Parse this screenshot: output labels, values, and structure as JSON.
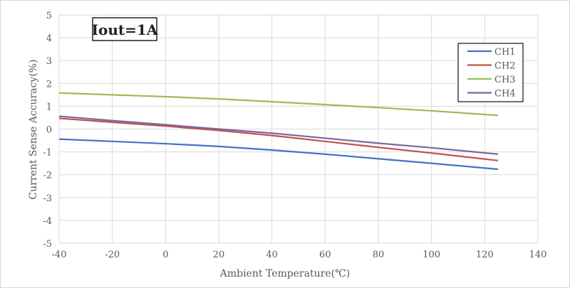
{
  "chart_data": {
    "type": "line",
    "title": "",
    "annotation": "Iout=1A",
    "xlabel": "Ambient Temperature(℃)",
    "ylabel": "Current Sense Accuracy(%)",
    "xlim": [
      -40,
      140
    ],
    "ylim": [
      -5,
      5
    ],
    "xticks": [
      -40,
      -20,
      0,
      20,
      40,
      60,
      80,
      100,
      120,
      140
    ],
    "yticks": [
      -5,
      -4,
      -3,
      -2,
      -1,
      0,
      1,
      2,
      3,
      4,
      5
    ],
    "grid": true,
    "legend_position": "top-right",
    "x": [
      -40,
      -20,
      0,
      20,
      40,
      60,
      80,
      100,
      125
    ],
    "series": [
      {
        "name": "CH1",
        "color": "#4472c4",
        "values": [
          -0.44,
          -0.54,
          -0.64,
          -0.76,
          -0.92,
          -1.1,
          -1.3,
          -1.5,
          -1.76
        ]
      },
      {
        "name": "CH2",
        "color": "#c0504d",
        "values": [
          0.47,
          0.3,
          0.13,
          -0.06,
          -0.28,
          -0.54,
          -0.8,
          -1.05,
          -1.38
        ]
      },
      {
        "name": "CH3",
        "color": "#9bbb59",
        "values": [
          1.58,
          1.5,
          1.42,
          1.32,
          1.2,
          1.07,
          0.94,
          0.8,
          0.6
        ]
      },
      {
        "name": "CH4",
        "color": "#8064a2",
        "values": [
          0.56,
          0.37,
          0.19,
          0.0,
          -0.18,
          -0.4,
          -0.62,
          -0.82,
          -1.1
        ]
      }
    ]
  }
}
